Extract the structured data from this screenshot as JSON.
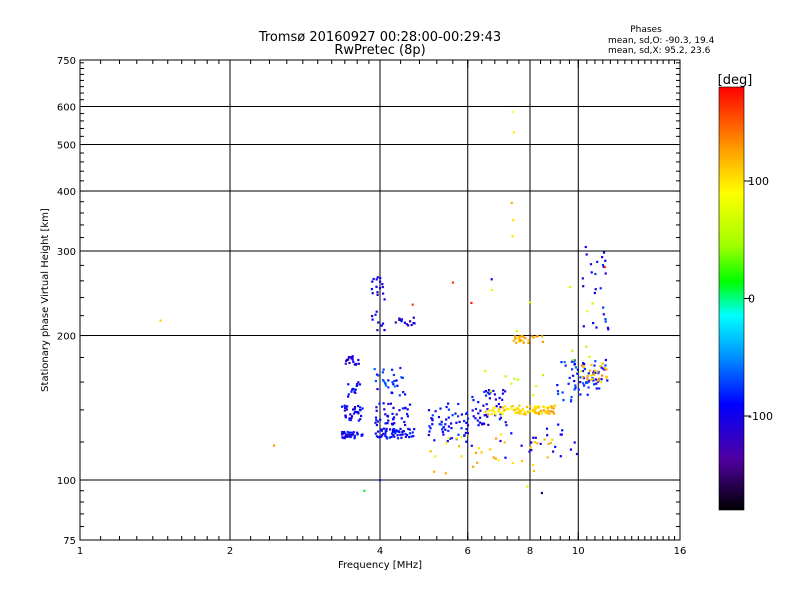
{
  "title_line1": "Tromsø 20160927 00:28:00-00:29:43",
  "title_line2": "RwPretec (8p)",
  "phase_info": {
    "heading": "Phases",
    "line_o": "mean, sd,O: -90.3, 19.4",
    "line_x": "mean, sd,X:  95.2, 23.6"
  },
  "chart_data": {
    "type": "scatter",
    "xlabel": "Frequency [MHz]",
    "ylabel": "Stationary phase Virtual Height [km]",
    "xscale": "log",
    "yscale": "log",
    "xlim": [
      1,
      16
    ],
    "ylim": [
      75,
      750
    ],
    "x_ticks": [
      1,
      2,
      4,
      6,
      8,
      10,
      16
    ],
    "x_tick_labels": [
      "1",
      "2",
      "4",
      "6",
      "8",
      "10",
      "16"
    ],
    "y_ticks": [
      75,
      100,
      200,
      300,
      400,
      500,
      600,
      750
    ],
    "y_tick_labels": [
      "75",
      "100",
      "200",
      "300",
      "400",
      "500",
      "600",
      "750"
    ],
    "grid_x": [
      2,
      4,
      6,
      8,
      10
    ],
    "grid_y": [
      100,
      200,
      300,
      400,
      500,
      600
    ],
    "colorbar": {
      "label": "[deg]",
      "range": [
        -180,
        180
      ],
      "ticks": [
        100,
        0,
        -100
      ],
      "tick_labels": [
        "100",
        "0",
        "-100"
      ]
    },
    "clusters": [
      {
        "phase": -95,
        "f": [
          3.35,
          3.7
        ],
        "h": [
          122,
          126
        ],
        "n": 40
      },
      {
        "phase": -100,
        "f": [
          3.35,
          3.75
        ],
        "h": [
          133,
          143
        ],
        "n": 35
      },
      {
        "phase": -95,
        "f": [
          3.4,
          3.65
        ],
        "h": [
          148,
          160
        ],
        "n": 15
      },
      {
        "phase": -105,
        "f": [
          3.4,
          3.65
        ],
        "h": [
          174,
          182
        ],
        "n": 18
      },
      {
        "phase": -95,
        "f": [
          3.9,
          4.7
        ],
        "h": [
          122,
          128
        ],
        "n": 55
      },
      {
        "phase": -100,
        "f": [
          3.9,
          4.6
        ],
        "h": [
          130,
          145
        ],
        "n": 40
      },
      {
        "phase": -80,
        "f": [
          3.9,
          4.5
        ],
        "h": [
          150,
          172
        ],
        "n": 30
      },
      {
        "phase": -100,
        "f": [
          3.85,
          4.1
        ],
        "h": [
          205,
          265
        ],
        "n": 25
      },
      {
        "phase": -105,
        "f": [
          4.3,
          4.7
        ],
        "h": [
          210,
          218
        ],
        "n": 14
      },
      {
        "phase": -90,
        "f": [
          5.0,
          6.0
        ],
        "h": [
          120,
          145
        ],
        "n": 55
      },
      {
        "phase": -95,
        "f": [
          6.0,
          7.2
        ],
        "h": [
          130,
          155
        ],
        "n": 50
      },
      {
        "phase": 100,
        "f": [
          6.5,
          8.8
        ],
        "h": [
          137,
          143
        ],
        "n": 70
      },
      {
        "phase": 120,
        "f": [
          7.8,
          9.0
        ],
        "h": [
          137,
          143
        ],
        "n": 25
      },
      {
        "phase": 115,
        "f": [
          7.2,
          8.6
        ],
        "h": [
          193,
          200
        ],
        "n": 25
      },
      {
        "phase": -75,
        "f": [
          9.0,
          10.5
        ],
        "h": [
          145,
          180
        ],
        "n": 35
      },
      {
        "phase": -85,
        "f": [
          9.8,
          11.5
        ],
        "h": [
          155,
          178
        ],
        "n": 40
      },
      {
        "phase": 120,
        "f": [
          10.0,
          11.4
        ],
        "h": [
          160,
          175
        ],
        "n": 25
      },
      {
        "phase": -90,
        "f": [
          10.2,
          11.5
        ],
        "h": [
          205,
          300
        ],
        "n": 25
      },
      {
        "phase": 110,
        "f": [
          5.0,
          9.0
        ],
        "h": [
          103,
          125
        ],
        "n": 35
      },
      {
        "phase": -100,
        "f": [
          6.0,
          10.0
        ],
        "h": [
          110,
          135
        ],
        "n": 25
      },
      {
        "phase": 60,
        "f": [
          6.5,
          11.0
        ],
        "h": [
          140,
          270
        ],
        "n": 20
      }
    ],
    "points": [
      {
        "f": 1.45,
        "h": 215,
        "phase": 110
      },
      {
        "f": 2.45,
        "h": 118,
        "phase": 130
      },
      {
        "f": 7.38,
        "h": 585,
        "phase": 90
      },
      {
        "f": 7.42,
        "h": 530,
        "phase": 95
      },
      {
        "f": 7.35,
        "h": 378,
        "phase": 120
      },
      {
        "f": 7.4,
        "h": 348,
        "phase": 100
      },
      {
        "f": 7.38,
        "h": 322,
        "phase": 100
      },
      {
        "f": 3.72,
        "h": 95,
        "phase": 10
      },
      {
        "f": 7.9,
        "h": 97,
        "phase": 70
      },
      {
        "f": 8.45,
        "h": 94,
        "phase": -150
      },
      {
        "f": 4.0,
        "h": 100,
        "phase": -80
      },
      {
        "f": 10.35,
        "h": 306,
        "phase": -95
      },
      {
        "f": 5.6,
        "h": 258,
        "phase": 160
      },
      {
        "f": 6.7,
        "h": 262,
        "phase": -95
      },
      {
        "f": 4.65,
        "h": 232,
        "phase": 160
      },
      {
        "f": 6.1,
        "h": 234,
        "phase": 170
      },
      {
        "f": 11.3,
        "h": 278,
        "phase": 170
      }
    ]
  }
}
